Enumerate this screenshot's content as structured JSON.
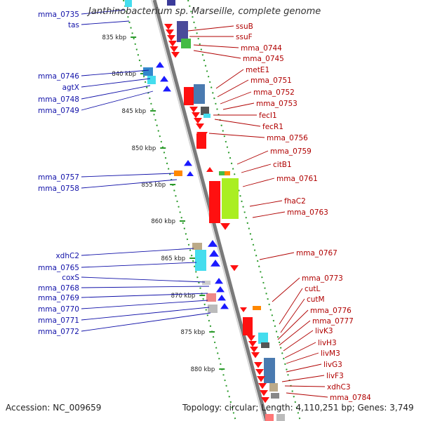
{
  "title": "Janthinobacterium sp. Marseille, complete genome",
  "accession": "Accession: NC_009659",
  "topology": "Topology: circular; Length: 4,110,251 bp; Genes: 3,749",
  "scale_labels": [
    "835 kbp",
    "840 kbp",
    "845 kbp",
    "850 kbp",
    "855 kbp",
    "860 kbp",
    "865 kbp",
    "870 kbp",
    "875 kbp",
    "880 kbp"
  ],
  "left_genes": [
    "mma_0735",
    "tas",
    "mma_0746",
    "agtX",
    "mma_0748",
    "mma_0749",
    "mma_0757",
    "mma_0758",
    "xdhC2",
    "mma_0765",
    "coxS",
    "mma_0768",
    "mma_0769",
    "mma_0770",
    "mma_0771",
    "mma_0772"
  ],
  "right_genes": [
    "ssuB",
    "ssuF",
    "mma_0744",
    "mma_0745",
    "metE1",
    "mma_0751",
    "mma_0752",
    "mma_0753",
    "fecI1",
    "fecR1",
    "mma_0756",
    "mma_0759",
    "citB1",
    "mma_0761",
    "fhaC2",
    "mma_0763",
    "mma_0767",
    "mma_0773",
    "cutL",
    "cutM",
    "mma_0776",
    "mma_0777",
    "livK3",
    "livH3",
    "livM3",
    "livG3",
    "livF3",
    "xdhC3",
    "mma_0784"
  ],
  "colors": {
    "forward_strand": "#ff1010",
    "reverse_strand": "#1a1aff",
    "left_label": "#1010a8",
    "right_label": "#b00000",
    "backbone": "#7a7a7a",
    "tick": "#2a9a2a"
  }
}
